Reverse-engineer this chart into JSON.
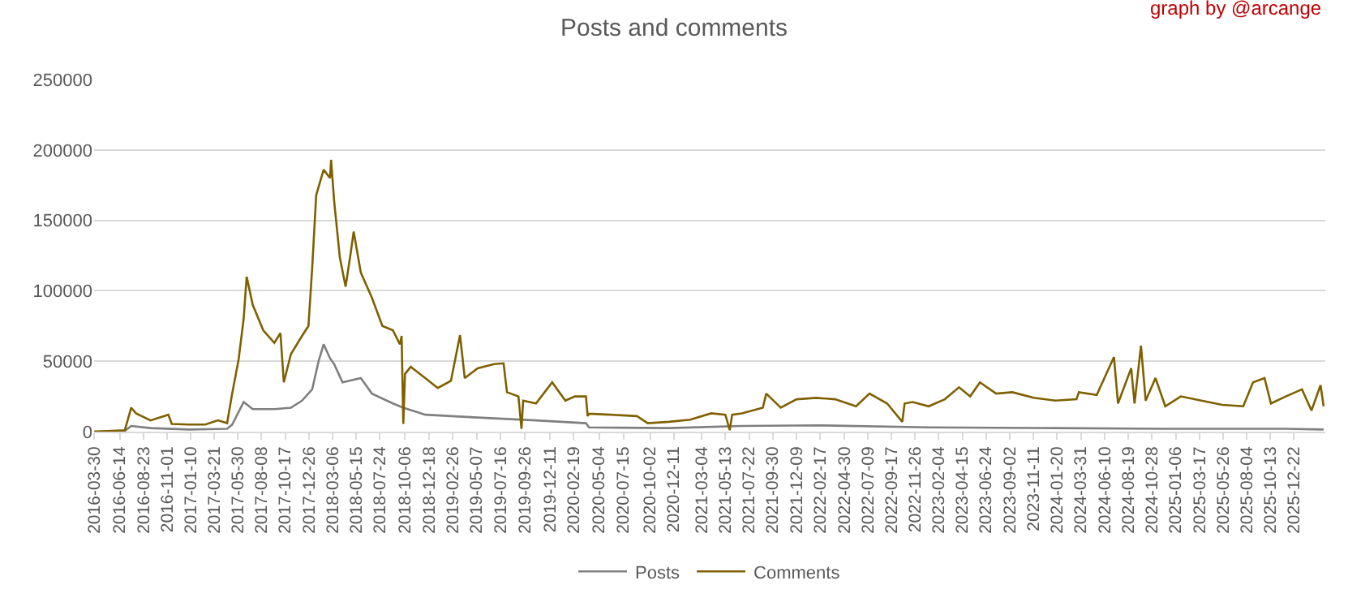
{
  "chart_data": {
    "type": "line",
    "title": "Posts and comments",
    "annotations": [
      "graph by @arcange"
    ],
    "ylim": [
      0,
      250000
    ],
    "yticks": [
      0,
      50000,
      100000,
      150000,
      200000,
      250000
    ],
    "xlim": [
      "2016-03-30",
      "2026-03-25"
    ],
    "xticks": [
      "2016-03-30",
      "2016-06-14",
      "2016-08-23",
      "2016-11-01",
      "2017-01-10",
      "2017-03-21",
      "2017-05-30",
      "2017-08-08",
      "2017-10-17",
      "2017-12-26",
      "2018-03-06",
      "2018-05-15",
      "2018-07-24",
      "2018-10-06",
      "2018-12-18",
      "2019-02-26",
      "2019-05-07",
      "2019-07-16",
      "2019-09-26",
      "2019-12-11",
      "2020-02-19",
      "2020-05-04",
      "2020-07-15",
      "2020-10-02",
      "2020-12-11",
      "2021-03-04",
      "2021-05-13",
      "2021-07-22",
      "2021-09-30",
      "2021-12-09",
      "2022-02-17",
      "2022-04-30",
      "2022-07-09",
      "2022-09-17",
      "2022-11-26",
      "2023-02-04",
      "2023-04-15",
      "2023-06-24",
      "2023-09-02",
      "2023-11-11",
      "2024-01-20",
      "2024-03-31",
      "2024-06-10",
      "2024-08-19",
      "2024-10-28",
      "2025-01-06",
      "2025-03-17",
      "2025-05-26",
      "2025-08-04",
      "2025-10-13",
      "2025-12-22"
    ],
    "grid": "y",
    "legend": "bottom",
    "marker": "none",
    "line_style": "solid",
    "series": [
      {
        "name": "Posts",
        "color": "#7f7f7f",
        "x": [
          "2016-03-30",
          "2016-06-29",
          "2016-07-18",
          "2016-09-13",
          "2017-01-05",
          "2017-04-28",
          "2017-05-13",
          "2017-06-16",
          "2017-07-13",
          "2017-09-15",
          "2017-11-03",
          "2017-12-06",
          "2018-01-05",
          "2018-01-24",
          "2018-02-08",
          "2018-02-27",
          "2018-03-11",
          "2018-04-05",
          "2018-05-29",
          "2018-07-01",
          "2018-09-01",
          "2018-10-02",
          "2018-12-06",
          "2019-05-10",
          "2019-10-30",
          "2020-03-26",
          "2020-04-04",
          "2020-11-27",
          "2021-07-01",
          "2022-02-06",
          "2023-01-05",
          "2024-01-15",
          "2024-12-06",
          "2025-11-28",
          "2026-03-20"
        ],
        "values": [
          0,
          500,
          4000,
          2500,
          1500,
          2000,
          5000,
          21000,
          16000,
          16000,
          17000,
          22000,
          30000,
          50000,
          62000,
          52000,
          48000,
          35000,
          38000,
          27000,
          20000,
          17000,
          12000,
          10000,
          8000,
          6000,
          3000,
          2500,
          4000,
          4500,
          3000,
          2500,
          2000,
          2000,
          1500
        ]
      },
      {
        "name": "Comments",
        "color": "#7f6000",
        "x": [
          "2016-03-30",
          "2016-06-29",
          "2016-07-18",
          "2016-08-01",
          "2016-09-13",
          "2016-11-05",
          "2016-11-15",
          "2017-01-05",
          "2017-02-22",
          "2017-04-01",
          "2017-04-28",
          "2017-05-13",
          "2017-06-01",
          "2017-06-16",
          "2017-06-25",
          "2017-07-13",
          "2017-08-13",
          "2017-09-15",
          "2017-10-03",
          "2017-10-13",
          "2017-11-03",
          "2017-12-06",
          "2017-12-25",
          "2018-01-05",
          "2018-01-17",
          "2018-02-08",
          "2018-02-27",
          "2018-03-02",
          "2018-03-11",
          "2018-03-28",
          "2018-04-14",
          "2018-04-28",
          "2018-05-08",
          "2018-05-29",
          "2018-07-01",
          "2018-08-01",
          "2018-09-01",
          "2018-09-22",
          "2018-09-27",
          "2018-10-02",
          "2018-10-07",
          "2018-10-24",
          "2018-12-06",
          "2019-01-12",
          "2019-02-20",
          "2019-03-19",
          "2019-04-02",
          "2019-05-10",
          "2019-06-28",
          "2019-07-26",
          "2019-08-05",
          "2019-09-08",
          "2019-09-17",
          "2019-09-22",
          "2019-10-30",
          "2019-12-17",
          "2020-01-25",
          "2020-02-22",
          "2020-03-26",
          "2020-03-31",
          "2020-04-04",
          "2020-06-06",
          "2020-08-24",
          "2020-09-25",
          "2020-11-27",
          "2021-01-29",
          "2021-04-01",
          "2021-05-13",
          "2021-05-26",
          "2021-06-02",
          "2021-07-01",
          "2021-09-01",
          "2021-09-11",
          "2021-10-24",
          "2021-12-10",
          "2022-02-06",
          "2022-04-03",
          "2022-06-04",
          "2022-07-14",
          "2022-09-04",
          "2022-10-19",
          "2022-10-26",
          "2022-11-19",
          "2023-01-05",
          "2023-02-22",
          "2023-04-05",
          "2023-05-08",
          "2023-06-06",
          "2023-07-24",
          "2023-09-10",
          "2023-11-12",
          "2024-01-15",
          "2024-03-18",
          "2024-03-25",
          "2024-05-17",
          "2024-07-07",
          "2024-07-19",
          "2024-08-27",
          "2024-09-06",
          "2024-09-25",
          "2024-10-09",
          "2024-11-07",
          "2024-12-06",
          "2025-01-21",
          "2025-03-23",
          "2025-05-24",
          "2025-07-25",
          "2025-08-23",
          "2025-09-26",
          "2025-10-15",
          "2025-11-28",
          "2026-01-15",
          "2026-02-12",
          "2026-03-11",
          "2026-03-20"
        ],
        "values": [
          0,
          1000,
          17000,
          13000,
          8000,
          12000,
          5500,
          5000,
          5000,
          8000,
          6000,
          27000,
          51000,
          80000,
          110000,
          90000,
          72000,
          63000,
          70000,
          35000,
          55000,
          68000,
          75000,
          116000,
          168000,
          186000,
          180000,
          193000,
          164000,
          123500,
          103000,
          125000,
          142000,
          113000,
          95000,
          75000,
          72000,
          62000,
          68000,
          5500,
          41000,
          46000,
          38000,
          31000,
          36000,
          68500,
          38000,
          45000,
          48000,
          48500,
          28000,
          25000,
          2000,
          22000,
          20000,
          35000,
          22000,
          25000,
          25000,
          11000,
          12700,
          12000,
          11000,
          6000,
          7000,
          8500,
          13000,
          12000,
          1000,
          12000,
          13000,
          17000,
          27000,
          17000,
          23000,
          24000,
          23000,
          18000,
          27000,
          20000,
          7000,
          20000,
          21000,
          18000,
          23000,
          31500,
          25000,
          35000,
          27000,
          28000,
          24000,
          22000,
          23000,
          28000,
          26000,
          53000,
          20000,
          45000,
          20000,
          61000,
          22000,
          38000,
          18000,
          25000,
          22000,
          19000,
          18000,
          35000,
          38000,
          20000,
          25000,
          30000,
          15000,
          33000,
          18000
        ]
      }
    ]
  }
}
